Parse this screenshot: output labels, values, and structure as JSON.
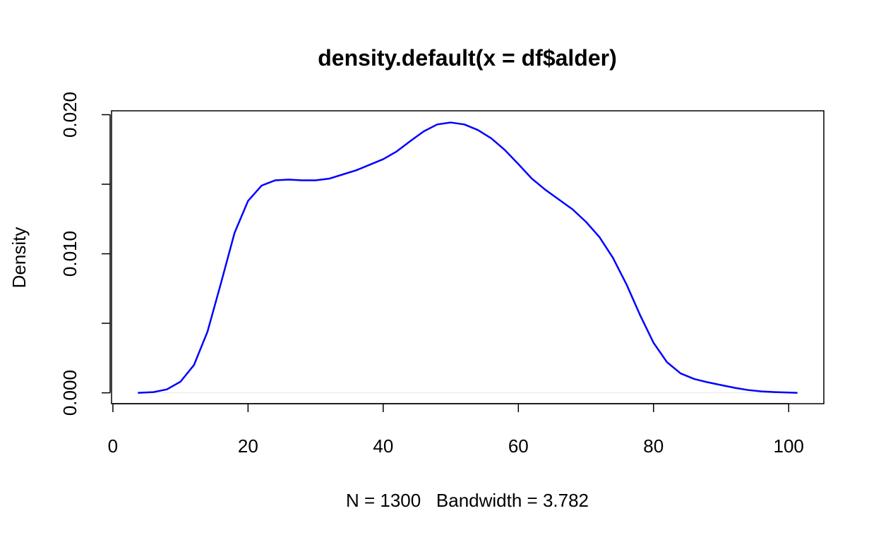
{
  "chart_data": {
    "type": "line",
    "title": "density.default(x = df$alder)",
    "x_label": "N = 1300   Bandwidth = 3.782",
    "y_label": "Density",
    "xlim": [
      -0.2,
      105.2
    ],
    "ylim": [
      -0.00078,
      0.02028
    ],
    "xticks": [
      0,
      20,
      40,
      60,
      80,
      100
    ],
    "yticks": [
      {
        "value": 0,
        "label": "0.000"
      },
      {
        "value": 0.005,
        "label": null
      },
      {
        "value": 0.01,
        "label": "0.010"
      },
      {
        "value": 0.015,
        "label": null
      },
      {
        "value": 0.02,
        "label": "0.020"
      }
    ],
    "x": [
      3.7,
      6,
      8,
      10,
      12,
      14,
      16,
      18,
      20,
      22,
      24,
      26,
      28,
      30,
      32,
      34,
      36,
      38,
      40,
      42,
      44,
      46,
      48,
      50,
      52,
      54,
      56,
      58,
      60,
      62,
      64,
      66,
      68,
      70,
      72,
      74,
      76,
      78,
      80,
      82,
      84,
      86,
      88,
      90,
      92,
      94,
      96,
      98,
      101.3
    ],
    "series": [
      {
        "name": "density",
        "color": "#0000ff",
        "values": [
          0,
          5e-05,
          0.00025,
          0.0008,
          0.002,
          0.0044,
          0.0079,
          0.0115,
          0.0138,
          0.0149,
          0.01528,
          0.01533,
          0.01528,
          0.01528,
          0.0154,
          0.0157,
          0.016,
          0.0164,
          0.0168,
          0.01736,
          0.0181,
          0.0188,
          0.0193,
          0.01944,
          0.0193,
          0.0189,
          0.0183,
          0.01746,
          0.01645,
          0.0154,
          0.0146,
          0.0139,
          0.0132,
          0.0123,
          0.0112,
          0.0097,
          0.0078,
          0.0056,
          0.0036,
          0.0022,
          0.0014,
          0.001,
          0.00076,
          0.00056,
          0.00036,
          0.0002,
          0.0001,
          5e-05,
          0
        ]
      }
    ]
  }
}
